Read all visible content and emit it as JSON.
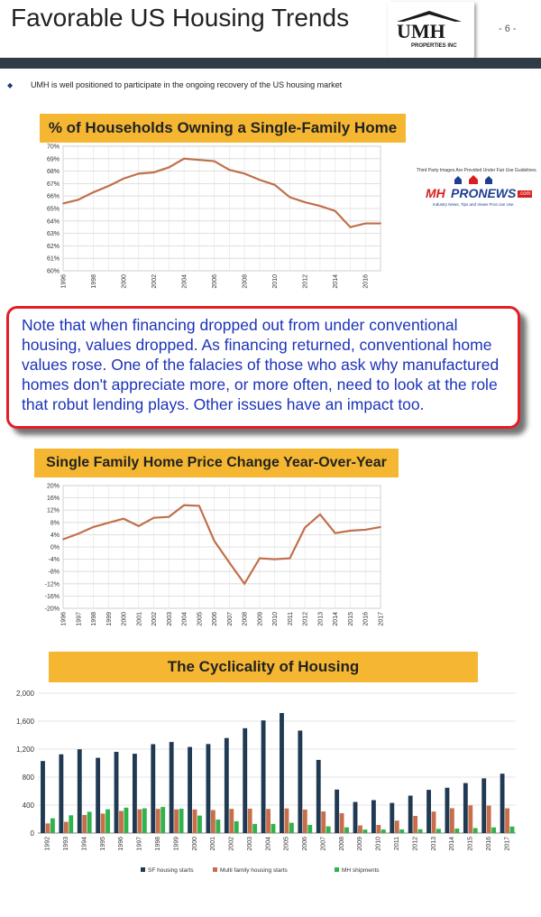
{
  "header": {
    "title": "Favorable US Housing Trends",
    "page_number": "- 6 -",
    "logo_text": "UMH",
    "logo_subtext": "PROPERTIES INC"
  },
  "bullet_text": "UMH is well positioned to participate in the ongoing recovery of the US housing market",
  "note_text": "Note that when financing dropped out from under conventional housing, values dropped.  As financing returned, conventional home values rose.  One of the falacies of those who ask why manufactured homes don't appreciate more, or more often, need to look at the role that robut lending plays. Other issues have an impact too.",
  "watermark": {
    "fair_use": "Third Party Images Are Provided Under Fair Use Guidelines.",
    "brand_m": "MH",
    "brand_rest": "PRONEWS",
    "tld": ".com",
    "tagline": "Industry News, Tips and Views Pros can Use"
  },
  "colors": {
    "title_band": "#f5b731",
    "line": "#c0704c",
    "sf_bar": "#1f3a52",
    "mf_bar": "#c76f4a",
    "mh_bar": "#2fb34a",
    "note_border": "#e41e25",
    "note_text": "#1c33b8"
  },
  "chart_data": [
    {
      "type": "line",
      "title": "% of Households Owning a Single-Family Home",
      "x": [
        1996,
        1997,
        1998,
        1999,
        2000,
        2001,
        2002,
        2003,
        2004,
        2005,
        2006,
        2007,
        2008,
        2009,
        2010,
        2011,
        2012,
        2013,
        2014,
        2015,
        2016,
        2017
      ],
      "y": [
        65.4,
        65.7,
        66.3,
        66.8,
        67.4,
        67.8,
        67.9,
        68.3,
        69.0,
        68.9,
        68.8,
        68.1,
        67.8,
        67.3,
        66.9,
        65.9,
        65.5,
        65.2,
        64.8,
        63.5,
        63.8,
        63.8
      ],
      "x_tick_labels": [
        "1996",
        "1998",
        "2000",
        "2002",
        "2004",
        "2006",
        "2008",
        "2010",
        "2012",
        "2014",
        "2016"
      ],
      "y_tick_labels": [
        "70%",
        "69%",
        "68%",
        "67%",
        "66%",
        "65%",
        "64%",
        "63%",
        "62%",
        "61%",
        "60%"
      ],
      "ylim": [
        60,
        70
      ],
      "grid": true
    },
    {
      "type": "line",
      "title": "Single Family Home Price Change Year-Over-Year",
      "x": [
        1996,
        1997,
        1998,
        1999,
        2000,
        2001,
        2002,
        2003,
        2004,
        2005,
        2006,
        2007,
        2008,
        2009,
        2010,
        2011,
        2012,
        2013,
        2014,
        2015,
        2016,
        2017
      ],
      "y": [
        2.5,
        4.3,
        6.5,
        7.9,
        9.2,
        6.8,
        9.5,
        9.8,
        13.6,
        13.4,
        2.0,
        -5.1,
        -12.0,
        -3.7,
        -4.0,
        -3.7,
        6.3,
        10.6,
        4.5,
        5.3,
        5.6,
        6.5
      ],
      "x_tick_labels": [
        "1996",
        "1997",
        "1998",
        "1999",
        "2000",
        "2001",
        "2002",
        "2003",
        "2004",
        "2005",
        "2006",
        "2007",
        "2008",
        "2009",
        "2010",
        "2011",
        "2012",
        "2013",
        "2014",
        "2015",
        "2016",
        "2017"
      ],
      "y_tick_labels": [
        "20%",
        "16%",
        "12%",
        "8%",
        "4%",
        "0%",
        "-4%",
        "-8%",
        "-12%",
        "-16%",
        "-20%"
      ],
      "ylim": [
        -20,
        20
      ],
      "grid": true
    },
    {
      "type": "bar",
      "title": "The Cyclicality of Housing",
      "categories": [
        "1992",
        "1993",
        "1994",
        "1995",
        "1996",
        "1997",
        "1998",
        "1999",
        "2000",
        "2001",
        "2002",
        "2003",
        "2004",
        "2005",
        "2006",
        "2007",
        "2008",
        "2009",
        "2010",
        "2011",
        "2012",
        "2013",
        "2014",
        "2015",
        "2016",
        "2017"
      ],
      "series": [
        {
          "name": "SF housing starts",
          "values": [
            1030,
            1126,
            1198,
            1076,
            1161,
            1134,
            1271,
            1302,
            1231,
            1273,
            1359,
            1499,
            1611,
            1716,
            1465,
            1046,
            622,
            445,
            471,
            431,
            535,
            618,
            648,
            715,
            782,
            849
          ]
        },
        {
          "name": "Multi family housing starts",
          "values": [
            138,
            160,
            259,
            278,
            316,
            340,
            346,
            339,
            338,
            329,
            346,
            349,
            345,
            352,
            336,
            309,
            284,
            109,
            116,
            178,
            245,
            307,
            355,
            397,
            392,
            354
          ]
        },
        {
          "name": "MH shipments",
          "values": [
            211,
            254,
            304,
            340,
            363,
            354,
            373,
            348,
            250,
            193,
            169,
            131,
            131,
            147,
            117,
            96,
            82,
            50,
            50,
            52,
            55,
            60,
            64,
            71,
            81,
            93
          ]
        }
      ],
      "y_tick_labels": [
        "2,000",
        "1,600",
        "1,200",
        "800",
        "400",
        "0"
      ],
      "ylim": [
        0,
        2000
      ],
      "legend": "bottom"
    }
  ]
}
